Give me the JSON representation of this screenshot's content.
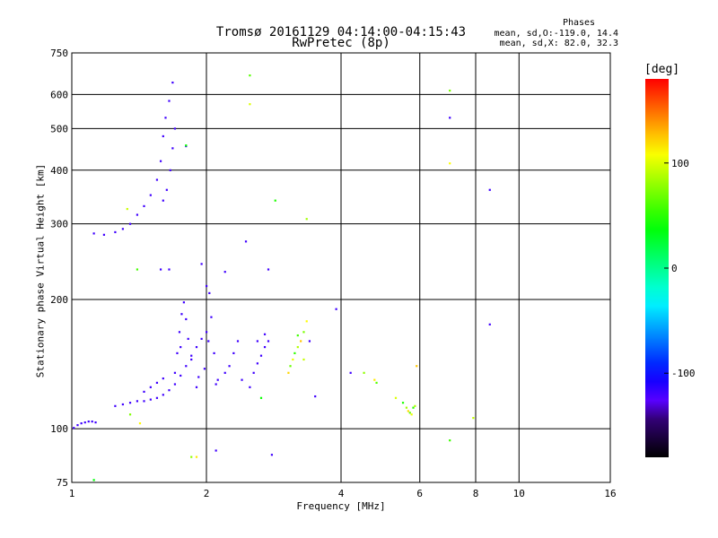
{
  "header": {
    "title_line1": "Tromsø 20161129 04:14:00-04:15:43",
    "title_line2": "RwPretec (8p)"
  },
  "phases_info": {
    "title": "Phases",
    "o_mode": "mean, sd,O:-119.0, 14.4",
    "x_mode": "mean, sd,X:  82.0, 32.3"
  },
  "colorbar": {
    "label": "[deg]",
    "ticks": [
      {
        "value": 100,
        "label": "100"
      },
      {
        "value": 0,
        "label": "0"
      },
      {
        "value": -100,
        "label": "-100"
      }
    ],
    "range": [
      -180,
      180
    ]
  },
  "chart_data": {
    "type": "scatter",
    "title": "Tromsø 20161129 04:14:00-04:15:43 RwPretec (8p)",
    "xlabel": "Frequency [MHz]",
    "ylabel": "Stationary phase Virtual Height [km]",
    "xscale": "log",
    "yscale": "log",
    "xlim": [
      1,
      16
    ],
    "ylim": [
      75,
      750
    ],
    "xticks": [
      1,
      2,
      4,
      6,
      8,
      10,
      16
    ],
    "xtick_labels": [
      "1",
      "2",
      "4",
      "6",
      "8",
      "10",
      "16"
    ],
    "yticks": [
      75,
      100,
      200,
      300,
      400,
      500,
      600,
      750
    ],
    "ytick_labels": [
      "75",
      "100",
      "200",
      "300",
      "400",
      "500",
      "600",
      "750"
    ],
    "grid": true,
    "color_variable": "phase [deg]",
    "series": [
      {
        "name": "O-mode echoes (blue/purple)",
        "phase": -119,
        "points": [
          [
            1.01,
            100.5
          ],
          [
            1.03,
            102
          ],
          [
            1.05,
            103
          ],
          [
            1.07,
            103.5
          ],
          [
            1.09,
            104
          ],
          [
            1.11,
            104
          ],
          [
            1.13,
            103.5
          ],
          [
            1.25,
            113
          ],
          [
            1.3,
            114
          ],
          [
            1.35,
            115
          ],
          [
            1.4,
            116
          ],
          [
            1.45,
            116
          ],
          [
            1.5,
            117
          ],
          [
            1.55,
            118
          ],
          [
            1.6,
            120
          ],
          [
            1.65,
            123
          ],
          [
            1.7,
            127
          ],
          [
            1.75,
            133
          ],
          [
            1.8,
            140
          ],
          [
            1.85,
            148
          ],
          [
            1.9,
            155
          ],
          [
            1.95,
            162
          ],
          [
            2.0,
            168
          ],
          [
            1.7,
            135
          ],
          [
            1.72,
            150
          ],
          [
            1.74,
            168
          ],
          [
            1.76,
            185
          ],
          [
            1.78,
            197
          ],
          [
            1.8,
            180
          ],
          [
            1.82,
            162
          ],
          [
            1.85,
            145
          ],
          [
            1.92,
            132
          ],
          [
            1.98,
            138
          ],
          [
            2.02,
            160
          ],
          [
            2.05,
            182
          ],
          [
            2.08,
            150
          ],
          [
            2.12,
            130
          ],
          [
            2.2,
            135
          ],
          [
            2.3,
            150
          ],
          [
            2.4,
            130
          ],
          [
            2.5,
            125
          ],
          [
            2.55,
            135
          ],
          [
            2.6,
            142
          ],
          [
            2.65,
            148
          ],
          [
            2.7,
            155
          ],
          [
            2.75,
            160
          ],
          [
            2.6,
            160
          ],
          [
            2.7,
            166
          ],
          [
            2.0,
            215
          ],
          [
            2.03,
            207
          ],
          [
            1.58,
            235
          ],
          [
            1.65,
            235
          ],
          [
            1.95,
            242
          ],
          [
            1.12,
            285
          ],
          [
            1.18,
            283
          ],
          [
            1.25,
            287
          ],
          [
            1.3,
            292
          ],
          [
            1.35,
            300
          ],
          [
            1.4,
            315
          ],
          [
            1.45,
            330
          ],
          [
            1.5,
            350
          ],
          [
            1.55,
            380
          ],
          [
            1.58,
            420
          ],
          [
            1.6,
            480
          ],
          [
            1.62,
            530
          ],
          [
            1.65,
            580
          ],
          [
            1.68,
            640
          ],
          [
            1.6,
            340
          ],
          [
            1.63,
            360
          ],
          [
            1.66,
            400
          ],
          [
            1.68,
            450
          ],
          [
            1.7,
            500
          ],
          [
            1.8,
            455
          ],
          [
            2.2,
            232
          ],
          [
            2.45,
            273
          ],
          [
            2.75,
            235
          ],
          [
            2.8,
            87
          ],
          [
            2.1,
            89
          ],
          [
            3.4,
            160
          ],
          [
            3.5,
            119
          ],
          [
            3.9,
            190
          ],
          [
            4.2,
            135
          ],
          [
            7.0,
            530
          ],
          [
            8.6,
            360
          ],
          [
            8.6,
            175
          ],
          [
            1.45,
            122
          ],
          [
            1.5,
            125
          ],
          [
            1.55,
            128
          ],
          [
            1.6,
            131
          ],
          [
            1.9,
            125
          ],
          [
            2.1,
            127
          ],
          [
            2.25,
            140
          ],
          [
            2.35,
            160
          ],
          [
            1.75,
            155
          ]
        ]
      },
      {
        "name": "X-mode echoes (green/yellow/orange)",
        "phase": 82,
        "points": [
          [
            1.12,
            76
          ],
          [
            1.35,
            108
          ],
          [
            1.42,
            103
          ],
          [
            1.4,
            235
          ],
          [
            1.33,
            325
          ],
          [
            1.8,
            457
          ],
          [
            1.85,
            86
          ],
          [
            1.9,
            86
          ],
          [
            2.5,
            665
          ],
          [
            2.5,
            570
          ],
          [
            2.85,
            340
          ],
          [
            3.35,
            308
          ],
          [
            3.05,
            135
          ],
          [
            3.08,
            140
          ],
          [
            3.12,
            145
          ],
          [
            3.15,
            150
          ],
          [
            3.2,
            155
          ],
          [
            3.25,
            160
          ],
          [
            3.3,
            168
          ],
          [
            3.35,
            178
          ],
          [
            3.2,
            165
          ],
          [
            3.3,
            145
          ],
          [
            2.65,
            118
          ],
          [
            4.5,
            135
          ],
          [
            4.75,
            130
          ],
          [
            4.8,
            128
          ],
          [
            5.3,
            118
          ],
          [
            5.5,
            115
          ],
          [
            5.6,
            112
          ],
          [
            5.65,
            110
          ],
          [
            5.7,
            109
          ],
          [
            5.75,
            108
          ],
          [
            5.8,
            112
          ],
          [
            5.85,
            113
          ],
          [
            5.9,
            140
          ],
          [
            7.0,
            613
          ],
          [
            7.0,
            415
          ],
          [
            7.0,
            94
          ],
          [
            7.9,
            106
          ]
        ]
      }
    ]
  }
}
